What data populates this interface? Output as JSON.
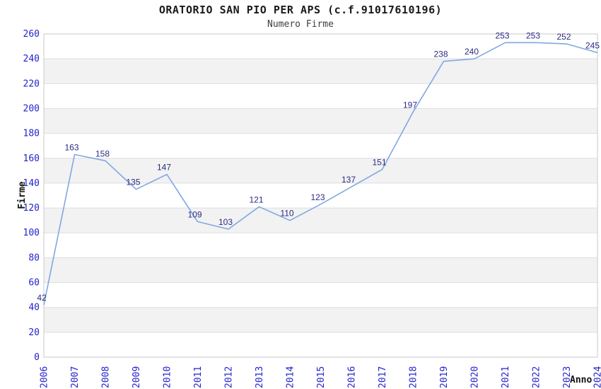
{
  "chart_data": {
    "type": "line",
    "title": "ORATORIO SAN PIO PER APS (c.f.91017610196)",
    "subtitle": "Numero Firme",
    "xlabel": "Anno",
    "ylabel": "Firme",
    "x": [
      2006,
      2007,
      2008,
      2009,
      2010,
      2011,
      2012,
      2013,
      2014,
      2015,
      2016,
      2017,
      2018,
      2019,
      2020,
      2021,
      2022,
      2023,
      2024
    ],
    "series": [
      {
        "name": "Numero Firme",
        "values": [
          42,
          163,
          158,
          135,
          147,
          109,
          103,
          121,
          110,
          123,
          137,
          151,
          197,
          238,
          240,
          253,
          253,
          252,
          245
        ]
      }
    ],
    "ylim": [
      0,
      260
    ],
    "ytick_step": 20,
    "legend": "none",
    "grid": "horizontal",
    "banded_background": true,
    "colors": {
      "line": "#7FA8E4",
      "data_label": "#2B2B85",
      "tick_label": "#2323CD",
      "band": "#F2F2F2",
      "gridline": "#DEDEDE",
      "plot_border": "#C9C9C9",
      "background": "#FFFFFF"
    }
  }
}
